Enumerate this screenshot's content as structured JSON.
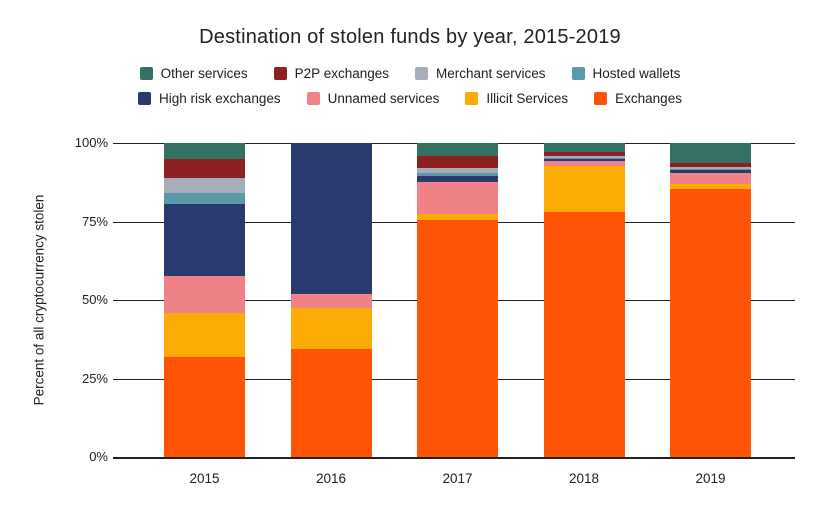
{
  "title": "Destination of stolen funds by year, 2015-2019",
  "chart_data": {
    "type": "bar",
    "subtype": "stacked-100-percent",
    "title": "Destination of stolen funds by year, 2015-2019",
    "xlabel": "",
    "ylabel": "Percent of all cryptocurrency stolen",
    "ylim": [
      0,
      100
    ],
    "yticks": [
      "100%",
      "75%",
      "50%",
      "25%",
      "0%"
    ],
    "grid": "horizontal",
    "legend_position": "top",
    "categories": [
      "2015",
      "2016",
      "2017",
      "2018",
      "2019"
    ],
    "series": [
      {
        "name": "Exchanges",
        "color": "#FF5405",
        "values": [
          32,
          34.5,
          75.5,
          78,
          85.5
        ]
      },
      {
        "name": "Illicit Services",
        "color": "#FCAB05",
        "values": [
          14,
          13,
          2,
          14.8,
          1.3
        ]
      },
      {
        "name": "Unnamed services",
        "color": "#F08186",
        "values": [
          11.5,
          4.5,
          10,
          1.5,
          3.8
        ]
      },
      {
        "name": "High risk exchanges",
        "color": "#283A6E",
        "values": [
          23,
          48,
          2,
          0.7,
          0.8
        ]
      },
      {
        "name": "Hosted wallets",
        "color": "#5A99A8",
        "values": [
          3.5,
          0,
          1,
          0.3,
          0.2
        ]
      },
      {
        "name": "Merchant services",
        "color": "#A5AEB8",
        "values": [
          5,
          0,
          1.5,
          0.5,
          0.7
        ]
      },
      {
        "name": "P2P exchanges",
        "color": "#8C1F1F",
        "values": [
          6,
          0,
          4,
          1.2,
          1.2
        ]
      },
      {
        "name": "Other services",
        "color": "#357065",
        "values": [
          5,
          0,
          4,
          3,
          6.5
        ]
      }
    ],
    "legend_rows": [
      [
        "Other services",
        "P2P exchanges",
        "Merchant services",
        "Hosted wallets"
      ],
      [
        "High risk exchanges",
        "Unnamed services",
        "Illicit Services",
        "Exchanges"
      ]
    ],
    "colors": {
      "axis_text": "#212121",
      "gridline": "#212121",
      "background": "#ffffff"
    }
  }
}
